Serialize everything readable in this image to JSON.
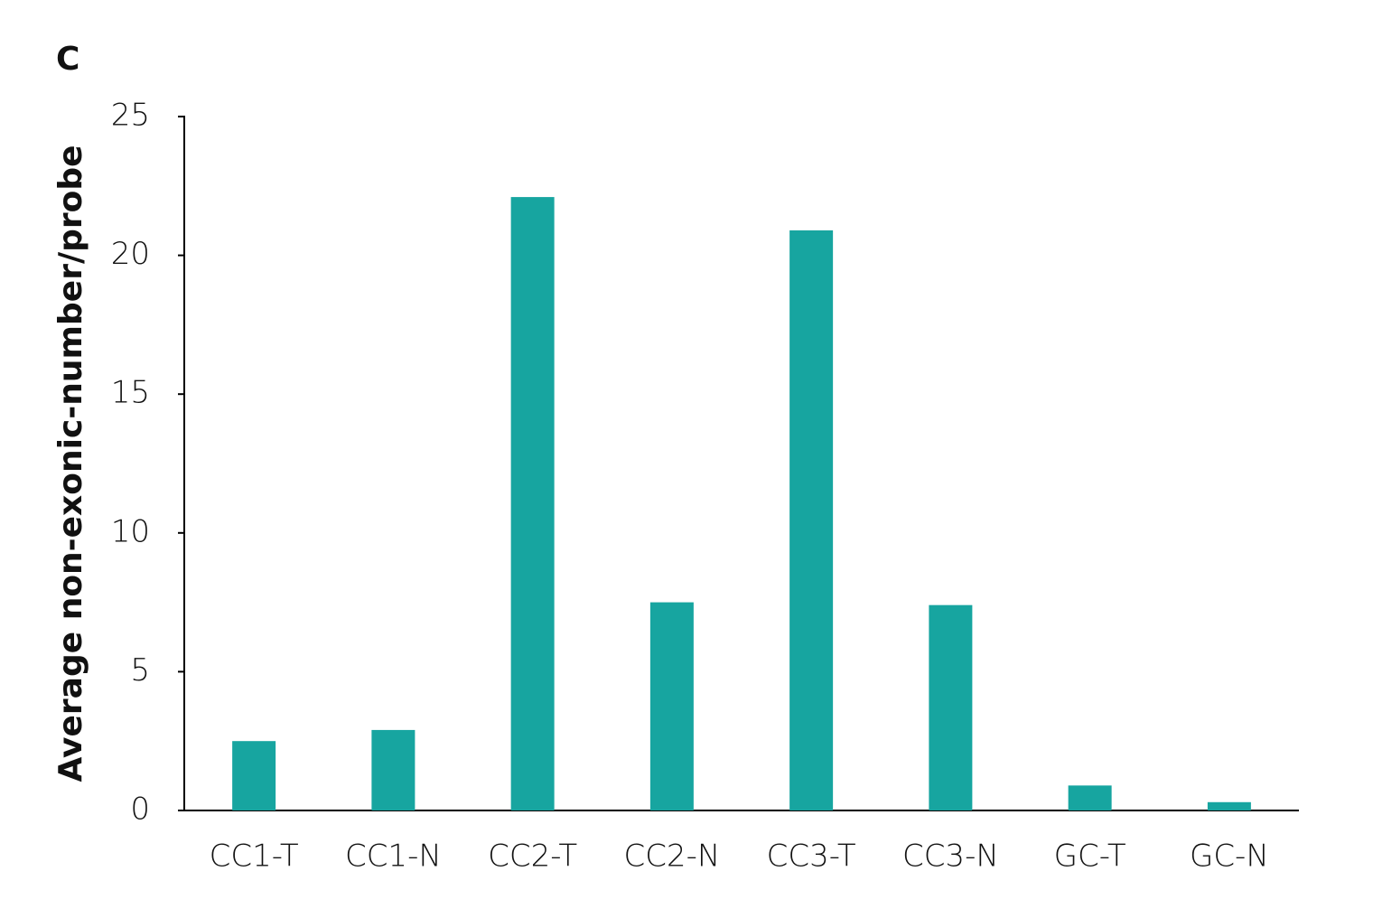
{
  "chart_data": {
    "type": "bar",
    "panel_label": "C",
    "y_label": "Average non-exonic-number/probe",
    "categories": [
      "CC1-T",
      "CC1-N",
      "CC2-T",
      "CC2-N",
      "CC3-T",
      "CC3-N",
      "GC-T",
      "GC-N"
    ],
    "values": [
      2.5,
      2.9,
      22.1,
      7.5,
      20.9,
      7.4,
      0.9,
      0.3
    ],
    "color": "#17a5a0",
    "ylim": [
      0,
      25
    ],
    "yticks": [
      0,
      5,
      10,
      15,
      20,
      25
    ],
    "grid": false
  }
}
